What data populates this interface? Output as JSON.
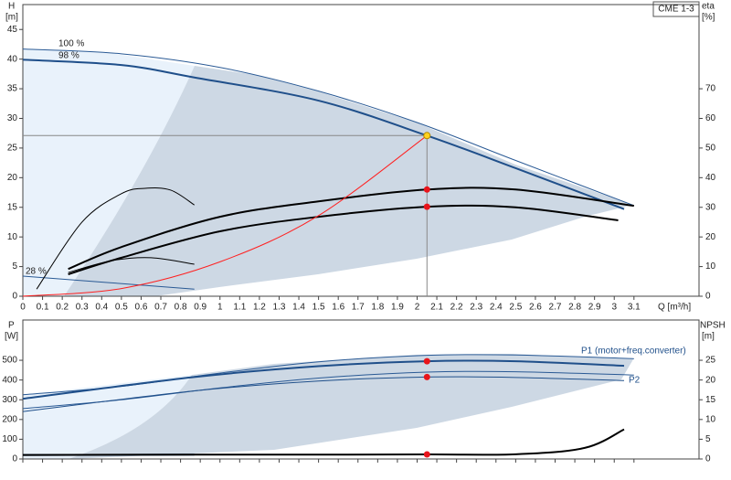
{
  "chart_data": [
    {
      "type": "line",
      "title": "CME 1-3",
      "ylabel": "H",
      "ylabel_unit": "[m]",
      "y2label": "eta",
      "y2label_unit": "[%]",
      "xlabel": "Q [m³/h]",
      "xlim": [
        0,
        3.43
      ],
      "ylim": [
        0,
        49.2
      ],
      "y2lim": [
        0,
        98.4
      ],
      "xticks": [
        0,
        0.1,
        0.2,
        0.3,
        0.4,
        0.5,
        0.6,
        0.7,
        0.8,
        0.9,
        1,
        1.1,
        1.2,
        1.3,
        1.4,
        1.5,
        1.6,
        1.7,
        1.8,
        1.9,
        2,
        2.1,
        2.2,
        2.3,
        2.4,
        2.5,
        2.6,
        2.7,
        2.8,
        2.9,
        3,
        3.1
      ],
      "yticks": [
        0,
        5,
        10,
        15,
        20,
        25,
        30,
        35,
        40,
        45
      ],
      "y2ticks": [
        0,
        10,
        20,
        30,
        40,
        50,
        60,
        70
      ],
      "series": [
        {
          "name": "100 %",
          "color": "#2a5a95",
          "style": "thin",
          "x": [
            0,
            0.5,
            1.0,
            1.5,
            2.0,
            2.5,
            3.1
          ],
          "values": [
            41.7,
            40.9,
            38.6,
            34.6,
            29.3,
            22.9,
            15.3
          ]
        },
        {
          "name": "98 %",
          "color": "#1f4f8a",
          "style": "thick",
          "x": [
            0,
            0.5,
            0.87,
            1.5,
            2.05,
            2.5,
            3.05
          ],
          "values": [
            39.9,
            39.0,
            36.9,
            33.0,
            27.1,
            21.6,
            14.7
          ]
        },
        {
          "name": "28 %",
          "color": "#2a5a95",
          "style": "thin",
          "x": [
            0,
            0.87
          ],
          "values": [
            3.4,
            1.2
          ]
        },
        {
          "color": "#000000",
          "style": "thick",
          "axis": "y2",
          "x": [
            0.23,
            0.5,
            1.0,
            1.5,
            2.05,
            2.5,
            3.1
          ],
          "values": [
            9.2,
            16.6,
            26.8,
            32,
            36,
            36,
            30.5
          ]
        },
        {
          "color": "#000000",
          "style": "thick",
          "axis": "y2",
          "x": [
            0.23,
            0.5,
            1.0,
            1.5,
            2.05,
            2.5,
            3.02
          ],
          "values": [
            7.4,
            13,
            21.9,
            26.8,
            30.2,
            30,
            25.6
          ]
        },
        {
          "color": "#000000",
          "style": "thin",
          "axis": "y2",
          "x": [
            0.07,
            0.3,
            0.5,
            0.62,
            0.75,
            0.87
          ],
          "values": [
            2.4,
            25,
            34.6,
            36.4,
            35.8,
            30.8
          ]
        },
        {
          "color": "#000000",
          "style": "thin",
          "axis": "y2",
          "x": [
            0.23,
            0.45,
            0.65,
            0.87
          ],
          "values": [
            8,
            12,
            13,
            10.8
          ]
        },
        {
          "color": "#ff2020",
          "style": "thin",
          "x": [
            0,
            0.5,
            1.0,
            1.5,
            2.05
          ],
          "values": [
            0,
            1.3,
            5.8,
            13.6,
            27.1
          ]
        }
      ],
      "markers": [
        {
          "color": "#ffd21f",
          "crosshair": true,
          "x": [
            2.05
          ],
          "values": [
            27.1
          ]
        },
        {
          "color": "#e8141b",
          "axis": "y2",
          "x": [
            2.05,
            2.05
          ],
          "values": [
            36,
            30.2
          ]
        }
      ]
    },
    {
      "type": "line",
      "ylabel": "P",
      "ylabel_unit": "[W]",
      "y2label": "NPSH",
      "y2label_unit": "[m]",
      "xlim": [
        0,
        3.43
      ],
      "ylim": [
        0,
        704
      ],
      "y2lim": [
        0,
        35.2
      ],
      "xtick_labels": false,
      "xticks": [
        0,
        0.1,
        0.2,
        0.3,
        0.4,
        0.5,
        0.6,
        0.7,
        0.8,
        0.9,
        1,
        1.1,
        1.2,
        1.3,
        1.4,
        1.5,
        1.6,
        1.7,
        1.8,
        1.9,
        2,
        2.1,
        2.2,
        2.3,
        2.4,
        2.5,
        2.6,
        2.7,
        2.8,
        2.9,
        3,
        3.1
      ],
      "yticks": [
        0,
        100,
        200,
        300,
        400,
        500
      ],
      "y2ticks": [
        0,
        5,
        10,
        15,
        20,
        25
      ],
      "series": [
        {
          "name": "P1 (motor+freq.converter)",
          "color": "#2a5a95",
          "style": "thin",
          "x": [
            0,
            0.5,
            1.0,
            1.5,
            2.05,
            2.5,
            3.1
          ],
          "values": [
            325,
            368,
            435,
            492,
            525,
            527,
            508
          ]
        },
        {
          "color": "#1f4f8a",
          "style": "thick",
          "x": [
            0,
            0.87,
            1.5,
            2.05,
            2.5,
            3.05
          ],
          "values": [
            305,
            415,
            470,
            495,
            495,
            472
          ]
        },
        {
          "name": "P2",
          "color": "#2a5a95",
          "style": "thin",
          "x": [
            0,
            0.5,
            1.0,
            1.5,
            2.05,
            2.5,
            3.1
          ],
          "values": [
            255,
            300,
            360,
            410,
            440,
            442,
            425
          ]
        },
        {
          "color": "#1f4f8a",
          "style": "thin",
          "x": [
            0,
            0.87,
            1.5,
            2.05,
            2.5,
            3.05
          ],
          "values": [
            240,
            345,
            395,
            415,
            413,
            397
          ]
        },
        {
          "color": "#1f4f8a",
          "style": "thick",
          "x": [
            0,
            0.87
          ],
          "values": [
            20,
            22
          ]
        },
        {
          "color": "#000000",
          "style": "thick",
          "axis": "y2",
          "x": [
            0,
            0.87,
            1.5,
            2.05,
            2.5,
            2.85,
            3.05
          ],
          "values": [
            1.0,
            1.1,
            1.1,
            1.15,
            1.2,
            2.8,
            7.5
          ]
        }
      ],
      "markers": [
        {
          "color": "#e8141b",
          "x": [
            2.05,
            2.05
          ],
          "values": [
            495,
            415
          ]
        },
        {
          "color": "#e8141b",
          "axis": "y2",
          "x": [
            2.05
          ],
          "values": [
            1.15
          ]
        }
      ]
    }
  ]
}
